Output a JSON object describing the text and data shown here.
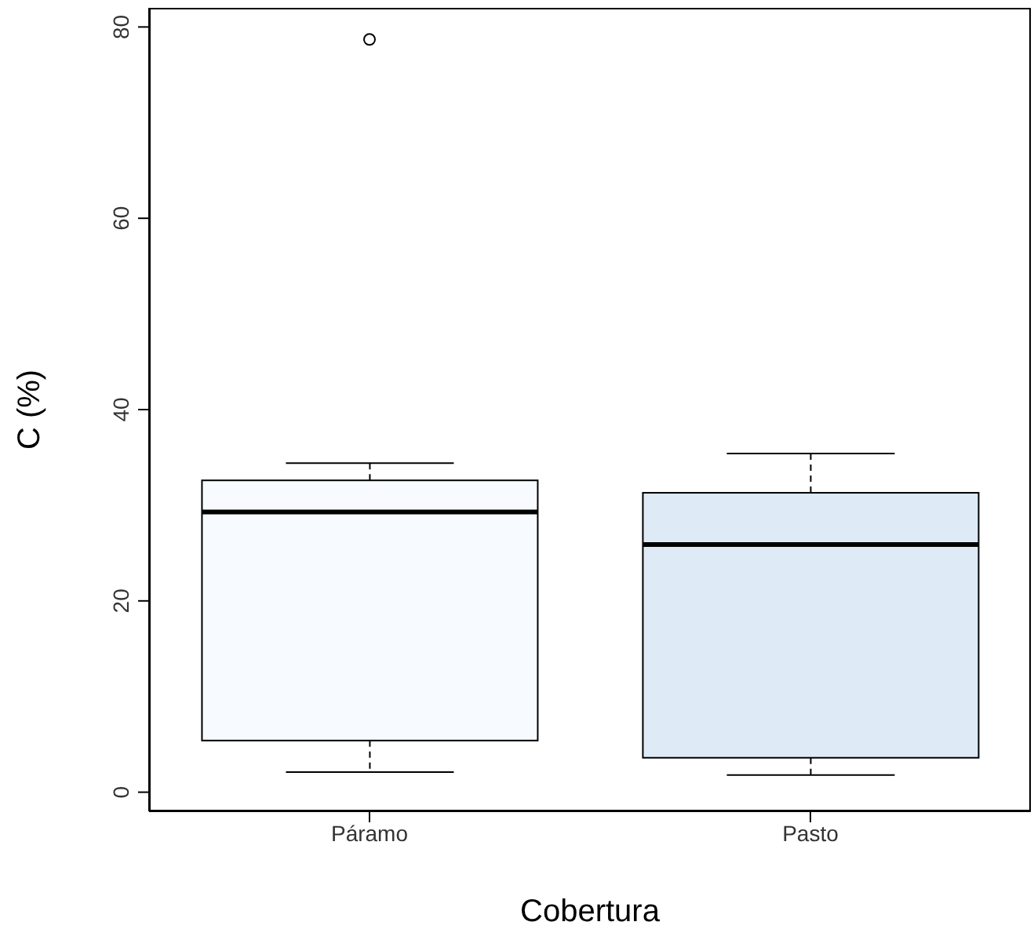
{
  "chart_data": {
    "type": "box",
    "xlabel": "Cobertura",
    "ylabel": "C (%)",
    "categories": [
      "Páramo",
      "Pasto"
    ],
    "colors": [
      "#f7fbff",
      "#deebf7"
    ],
    "boxes": [
      {
        "low": 2.1,
        "q1": 5.4,
        "median": 29.3,
        "q3": 32.6,
        "high": 34.4,
        "outliers": [
          78.7
        ]
      },
      {
        "low": 1.8,
        "q1": 3.6,
        "median": 25.9,
        "q3": 31.3,
        "high": 35.4
      }
    ],
    "ylim": [
      -2,
      82
    ],
    "yticks": [
      0,
      20,
      40,
      60,
      80
    ]
  }
}
